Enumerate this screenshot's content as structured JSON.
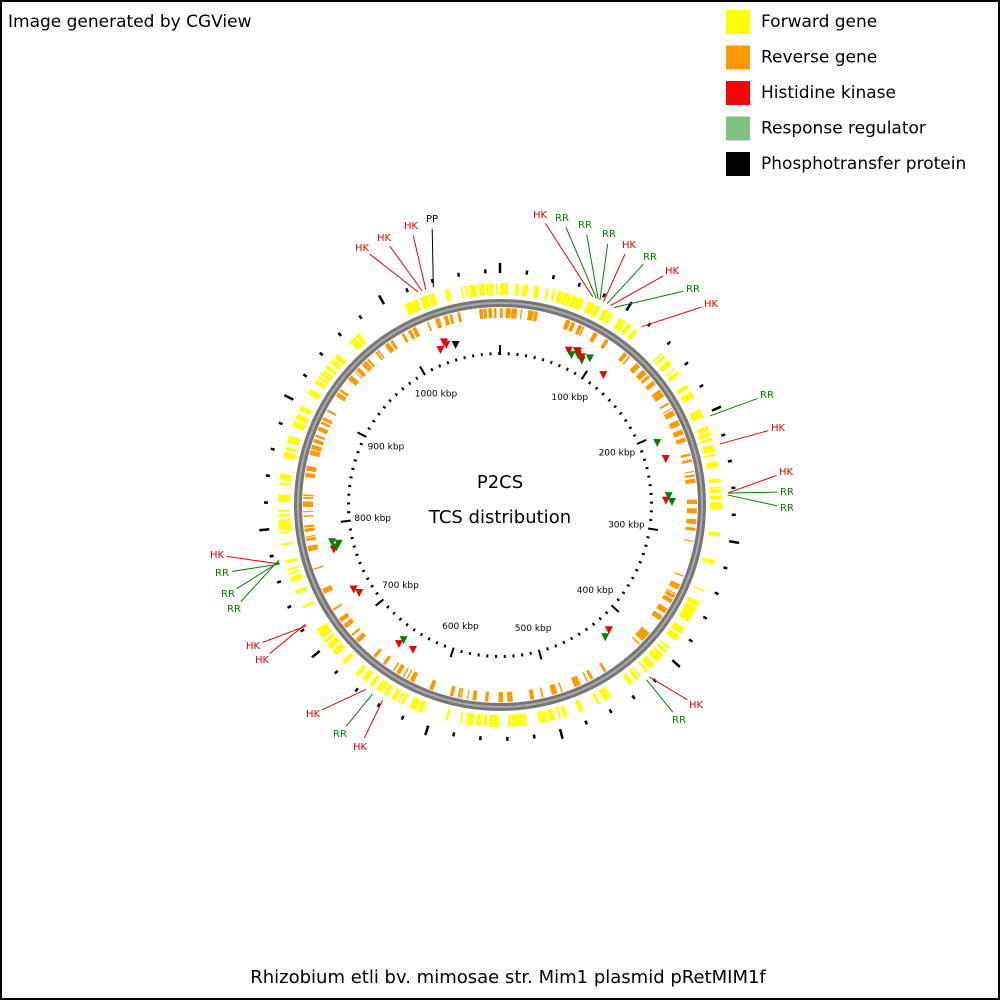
{
  "header": {
    "credit": "Image generated by CGView"
  },
  "legend": [
    {
      "label": "Forward gene",
      "color": "#ffff00"
    },
    {
      "label": "Reverse gene",
      "color": "#ff9900"
    },
    {
      "label": "Histidine kinase",
      "color": "#ff0000"
    },
    {
      "label": "Response regulator",
      "color": "#80c080"
    },
    {
      "label": "Phosphotransfer protein",
      "color": "#000000"
    }
  ],
  "center": {
    "title": "P2CS",
    "subtitle": "TCS distribution"
  },
  "ruler": [
    "100 kbp",
    "200 kbp",
    "300 kbp",
    "400 kbp",
    "500 kbp",
    "600 kbp",
    "700 kbp",
    "800 kbp",
    "900 kbp",
    "1000 kbp"
  ],
  "callouts": [
    {
      "label": "HK",
      "color": "#ee0000"
    },
    {
      "label": "HK",
      "color": "#ee0000"
    },
    {
      "label": "HK",
      "color": "#ee0000"
    },
    {
      "label": "PP",
      "color": "#000000"
    },
    {
      "label": "HK",
      "color": "#ee0000"
    },
    {
      "label": "RR",
      "color": "#008000"
    },
    {
      "label": "RR",
      "color": "#008000"
    },
    {
      "label": "RR",
      "color": "#008000"
    },
    {
      "label": "HK",
      "color": "#ee0000"
    },
    {
      "label": "RR",
      "color": "#008000"
    },
    {
      "label": "HK",
      "color": "#ee0000"
    },
    {
      "label": "RR",
      "color": "#008000"
    },
    {
      "label": "HK",
      "color": "#ee0000"
    },
    {
      "label": "RR",
      "color": "#008000"
    },
    {
      "label": "HK",
      "color": "#ee0000"
    },
    {
      "label": "HK",
      "color": "#ee0000"
    },
    {
      "label": "RR",
      "color": "#008000"
    },
    {
      "label": "RR",
      "color": "#008000"
    },
    {
      "label": "HK",
      "color": "#ee0000"
    },
    {
      "label": "RR",
      "color": "#008000"
    },
    {
      "label": "HK",
      "color": "#ee0000"
    },
    {
      "label": "RR",
      "color": "#008000"
    },
    {
      "label": "RR",
      "color": "#008000"
    },
    {
      "label": "RR",
      "color": "#008000"
    },
    {
      "label": "HK",
      "color": "#ee0000"
    },
    {
      "label": "HK",
      "color": "#ee0000"
    },
    {
      "label": "HK",
      "color": "#ee0000"
    },
    {
      "label": "RR",
      "color": "#008000"
    },
    {
      "label": "HK",
      "color": "#ee0000"
    }
  ],
  "footer": {
    "caption": "Rhizobium etli bv. mimosae str. Mim1 plasmid pRetMIM1f"
  }
}
